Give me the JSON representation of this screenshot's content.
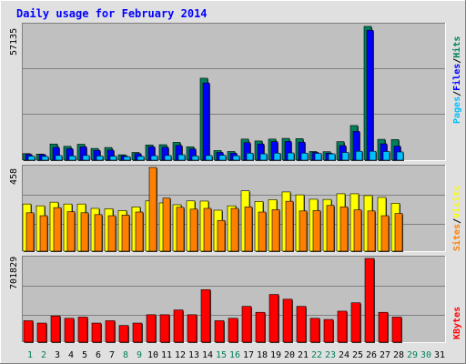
{
  "title": "Daily usage for February 2014",
  "colors": {
    "hits": "#00805c",
    "files": "#0000ff",
    "pages": "#00c0ff",
    "visits": "#ffff00",
    "sites": "#ff8000",
    "kbytes": "#ff0000",
    "day_weekday": "#000000",
    "day_weekend": "#00805c",
    "plot_bg": "#c0c0c0",
    "frame_bg": "#e0e0e0"
  },
  "labels": {
    "panel1_max": "57135",
    "panel2_max": "458",
    "panel3_max": "701829",
    "pages": "Pages",
    "files": "Files",
    "hits": "Hits",
    "sites": "Sites",
    "visits": "Visits",
    "kbytes": "KBytes",
    "slash": "/"
  },
  "chart_data": [
    {
      "type": "bar",
      "title": "Daily usage for February 2014",
      "categories": [
        "1",
        "2",
        "3",
        "4",
        "5",
        "6",
        "7",
        "8",
        "9",
        "10",
        "11",
        "12",
        "13",
        "14",
        "15",
        "16",
        "17",
        "18",
        "19",
        "20",
        "21",
        "22",
        "23",
        "24",
        "25",
        "26",
        "27",
        "28",
        "29",
        "30",
        "31"
      ],
      "ylim": [
        0,
        57135
      ],
      "series": [
        {
          "name": "Hits",
          "values": [
            2800,
            2600,
            6900,
            5900,
            6800,
            5000,
            5400,
            2300,
            3300,
            6500,
            6600,
            7600,
            5700,
            35000,
            4100,
            3700,
            9000,
            8200,
            9000,
            9300,
            9200,
            3700,
            3600,
            7900,
            14800,
            57135,
            8900,
            8800,
            0,
            0,
            0
          ]
        },
        {
          "name": "Files",
          "values": [
            2500,
            2400,
            5500,
            4900,
            5700,
            4200,
            4300,
            1900,
            2800,
            5700,
            5500,
            6300,
            4800,
            33000,
            3300,
            3000,
            7500,
            6900,
            7900,
            8000,
            7700,
            3300,
            3000,
            6200,
            12300,
            55500,
            7000,
            6000,
            0,
            0,
            0
          ]
        },
        {
          "name": "Pages",
          "values": [
            1700,
            1600,
            2000,
            1800,
            2000,
            1800,
            1700,
            1500,
            1600,
            1900,
            2000,
            2300,
            1800,
            2000,
            2100,
            1900,
            3000,
            2700,
            3000,
            3100,
            3000,
            2900,
            2700,
            3300,
            3800,
            3800,
            3700,
            3500,
            0,
            0,
            0
          ]
        }
      ]
    },
    {
      "type": "bar",
      "categories": [
        "1",
        "2",
        "3",
        "4",
        "5",
        "6",
        "7",
        "8",
        "9",
        "10",
        "11",
        "12",
        "13",
        "14",
        "15",
        "16",
        "17",
        "18",
        "19",
        "20",
        "21",
        "22",
        "23",
        "24",
        "25",
        "26",
        "27",
        "28",
        "29",
        "30",
        "31"
      ],
      "ylim": [
        0,
        458
      ],
      "series": [
        {
          "name": "Visits",
          "values": [
            258,
            248,
            268,
            258,
            258,
            234,
            232,
            222,
            242,
            275,
            264,
            254,
            275,
            274,
            224,
            248,
            330,
            272,
            282,
            324,
            308,
            284,
            283,
            314,
            314,
            304,
            294,
            262,
            0,
            0,
            0
          ]
        },
        {
          "name": "Sites",
          "values": [
            210,
            194,
            238,
            216,
            210,
            200,
            194,
            197,
            214,
            458,
            290,
            240,
            230,
            234,
            168,
            234,
            242,
            214,
            227,
            273,
            220,
            222,
            250,
            242,
            226,
            220,
            194,
            206,
            0,
            0,
            0
          ]
        }
      ]
    },
    {
      "type": "bar",
      "categories": [
        "1",
        "2",
        "3",
        "4",
        "5",
        "6",
        "7",
        "8",
        "9",
        "10",
        "11",
        "12",
        "13",
        "14",
        "15",
        "16",
        "17",
        "18",
        "19",
        "20",
        "21",
        "22",
        "23",
        "24",
        "25",
        "26",
        "27",
        "28",
        "29",
        "30",
        "31"
      ],
      "ylim": [
        0,
        701829
      ],
      "series": [
        {
          "name": "KBytes",
          "values": [
            180000,
            160000,
            220000,
            200000,
            210000,
            160000,
            180000,
            140000,
            160000,
            230000,
            230000,
            270000,
            230000,
            440000,
            180000,
            200000,
            300000,
            250000,
            400000,
            360000,
            300000,
            200000,
            190000,
            260000,
            330000,
            701829,
            250000,
            210000,
            0,
            0,
            0
          ]
        }
      ]
    }
  ],
  "weekend_days": [
    "1",
    "2",
    "8",
    "9",
    "15",
    "16",
    "22",
    "23",
    "29",
    "30"
  ]
}
